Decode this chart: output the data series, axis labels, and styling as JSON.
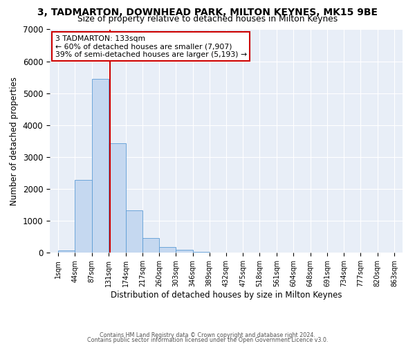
{
  "title": "3, TADMARTON, DOWNHEAD PARK, MILTON KEYNES, MK15 9BE",
  "subtitle": "Size of property relative to detached houses in Milton Keynes",
  "xlabel": "Distribution of detached houses by size in Milton Keynes",
  "ylabel": "Number of detached properties",
  "bar_color": "#c5d8f0",
  "bar_edgecolor": "#5b9bd5",
  "background_color": "#e8eef7",
  "grid_color": "#ffffff",
  "ylim": [
    0,
    7000
  ],
  "yticks": [
    0,
    1000,
    2000,
    3000,
    4000,
    5000,
    6000,
    7000
  ],
  "bin_edges": [
    1,
    44,
    87,
    131,
    174,
    217,
    260,
    303,
    346,
    389,
    432,
    475,
    518,
    561,
    604,
    648,
    691,
    734,
    777,
    820,
    863
  ],
  "bar_values": [
    70,
    2270,
    5450,
    3420,
    1330,
    450,
    175,
    80,
    30,
    5,
    2,
    0,
    0,
    0,
    0,
    0,
    0,
    0,
    0,
    0
  ],
  "tick_labels": [
    "1sqm",
    "44sqm",
    "87sqm",
    "131sqm",
    "174sqm",
    "217sqm",
    "260sqm",
    "303sqm",
    "346sqm",
    "389sqm",
    "432sqm",
    "475sqm",
    "518sqm",
    "561sqm",
    "604sqm",
    "648sqm",
    "691sqm",
    "734sqm",
    "777sqm",
    "820sqm",
    "863sqm"
  ],
  "vline_x": 133,
  "vline_color": "#cc0000",
  "annotation_title": "3 TADMARTON: 133sqm",
  "annotation_line1": "← 60% of detached houses are smaller (7,907)",
  "annotation_line2": "39% of semi-detached houses are larger (5,193) →",
  "annotation_box_edgecolor": "#cc0000",
  "footer_line1": "Contains HM Land Registry data © Crown copyright and database right 2024.",
  "footer_line2": "Contains public sector information licensed under the Open Government Licence v3.0."
}
